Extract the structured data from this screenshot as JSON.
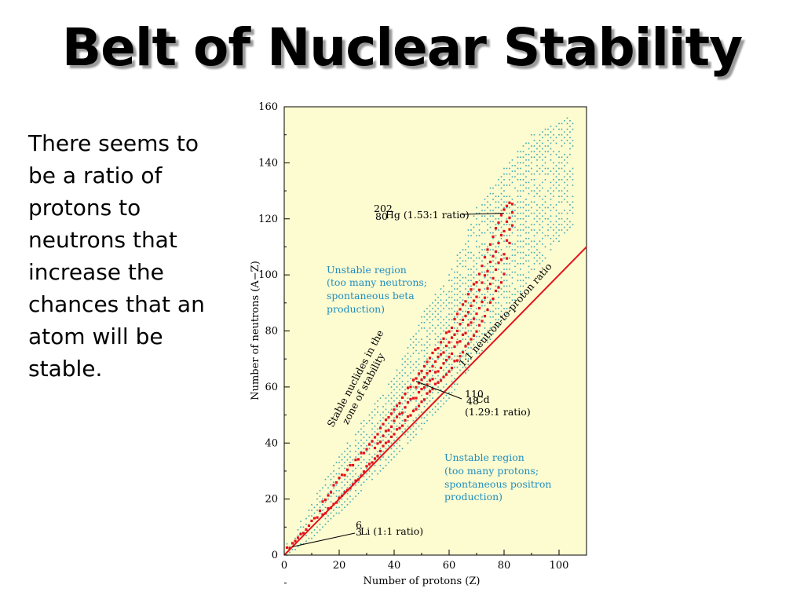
{
  "slide": {
    "title": "Belt of Nuclear Stability",
    "text": "There seems to be a ratio of protons to neutrons that increase the chances that an atom will  be stable."
  },
  "chart_data": {
    "type": "scatter",
    "xlabel": "Number of protons (Z)",
    "ylabel": "Number of neutrons (A−Z)",
    "xlim": [
      0,
      110
    ],
    "ylim": [
      0,
      160
    ],
    "xticks": [
      "0",
      "20",
      "40",
      "60",
      "80",
      "100"
    ],
    "yticks": [
      "0",
      "20",
      "40",
      "60",
      "80",
      "100",
      "120",
      "140",
      "160"
    ],
    "grid": false,
    "colors": {
      "background": "#fdfbd0",
      "stable": "#e0141e",
      "unstable": "#3aa9b4",
      "ratio_line": "#e0141e",
      "region_text": "#1f8fc0"
    },
    "ratio_line": {
      "label": "1:1 neutron-to-proton ratio",
      "from": [
        0,
        0
      ],
      "to": [
        110,
        110
      ]
    },
    "regions": {
      "upper": [
        "Unstable region",
        "(too many neutrons;",
        "spontaneous beta",
        "production)"
      ],
      "lower": [
        "Unstable region",
        "(too many protons;",
        "spontaneous positron",
        "production)"
      ],
      "belt": [
        "Stable nuclides in the",
        "zone of stability"
      ]
    },
    "annotations": [
      {
        "A": "202",
        "Z": "80",
        "symbol": "Hg",
        "ratio": "(1.53:1 ratio)",
        "point": [
          80,
          122
        ]
      },
      {
        "A": "110",
        "Z": "48",
        "symbol": "Cd",
        "ratio": "(1.29:1 ratio)",
        "point": [
          48,
          62
        ]
      },
      {
        "A": "6",
        "Z": "3",
        "symbol": "Li",
        "ratio": "(1:1 ratio)",
        "point": [
          3,
          3
        ]
      }
    ],
    "stable_band": [
      [
        0,
        0,
        2
      ],
      [
        10,
        10,
        13
      ],
      [
        20,
        20,
        27
      ],
      [
        30,
        31,
        38
      ],
      [
        40,
        43,
        52
      ],
      [
        50,
        55,
        66
      ],
      [
        60,
        66,
        80
      ],
      [
        70,
        80,
        98
      ],
      [
        80,
        100,
        124
      ],
      [
        83,
        118,
        126
      ]
    ],
    "unstable_band": [
      [
        1,
        0,
        4
      ],
      [
        10,
        6,
        19
      ],
      [
        20,
        15,
        36
      ],
      [
        30,
        25,
        50
      ],
      [
        40,
        35,
        64
      ],
      [
        50,
        45,
        86
      ],
      [
        60,
        56,
        100
      ],
      [
        70,
        70,
        124
      ],
      [
        80,
        84,
        138
      ],
      [
        90,
        100,
        150
      ],
      [
        105,
        118,
        157
      ]
    ]
  }
}
